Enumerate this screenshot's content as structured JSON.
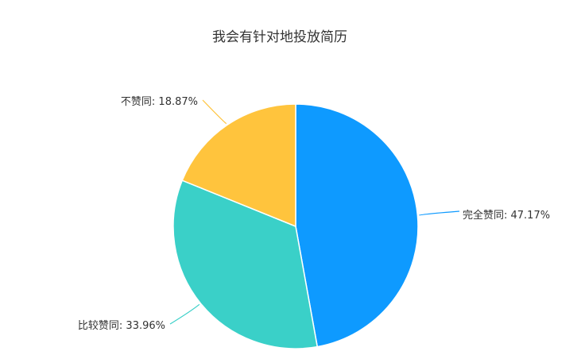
{
  "chart_data": {
    "type": "pie",
    "title": "我会有针对地投放简历",
    "slices": [
      {
        "label": "完全赞同",
        "value": 47.17,
        "display": "完全赞同: 47.17%",
        "color": "#0e9aff"
      },
      {
        "label": "比较赞同",
        "value": 33.96,
        "display": "比较赞同: 33.96%",
        "color": "#3ad0c8"
      },
      {
        "label": "不赞同",
        "value": 18.87,
        "display": "不赞同: 18.87%",
        "color": "#ffc43d"
      }
    ]
  }
}
